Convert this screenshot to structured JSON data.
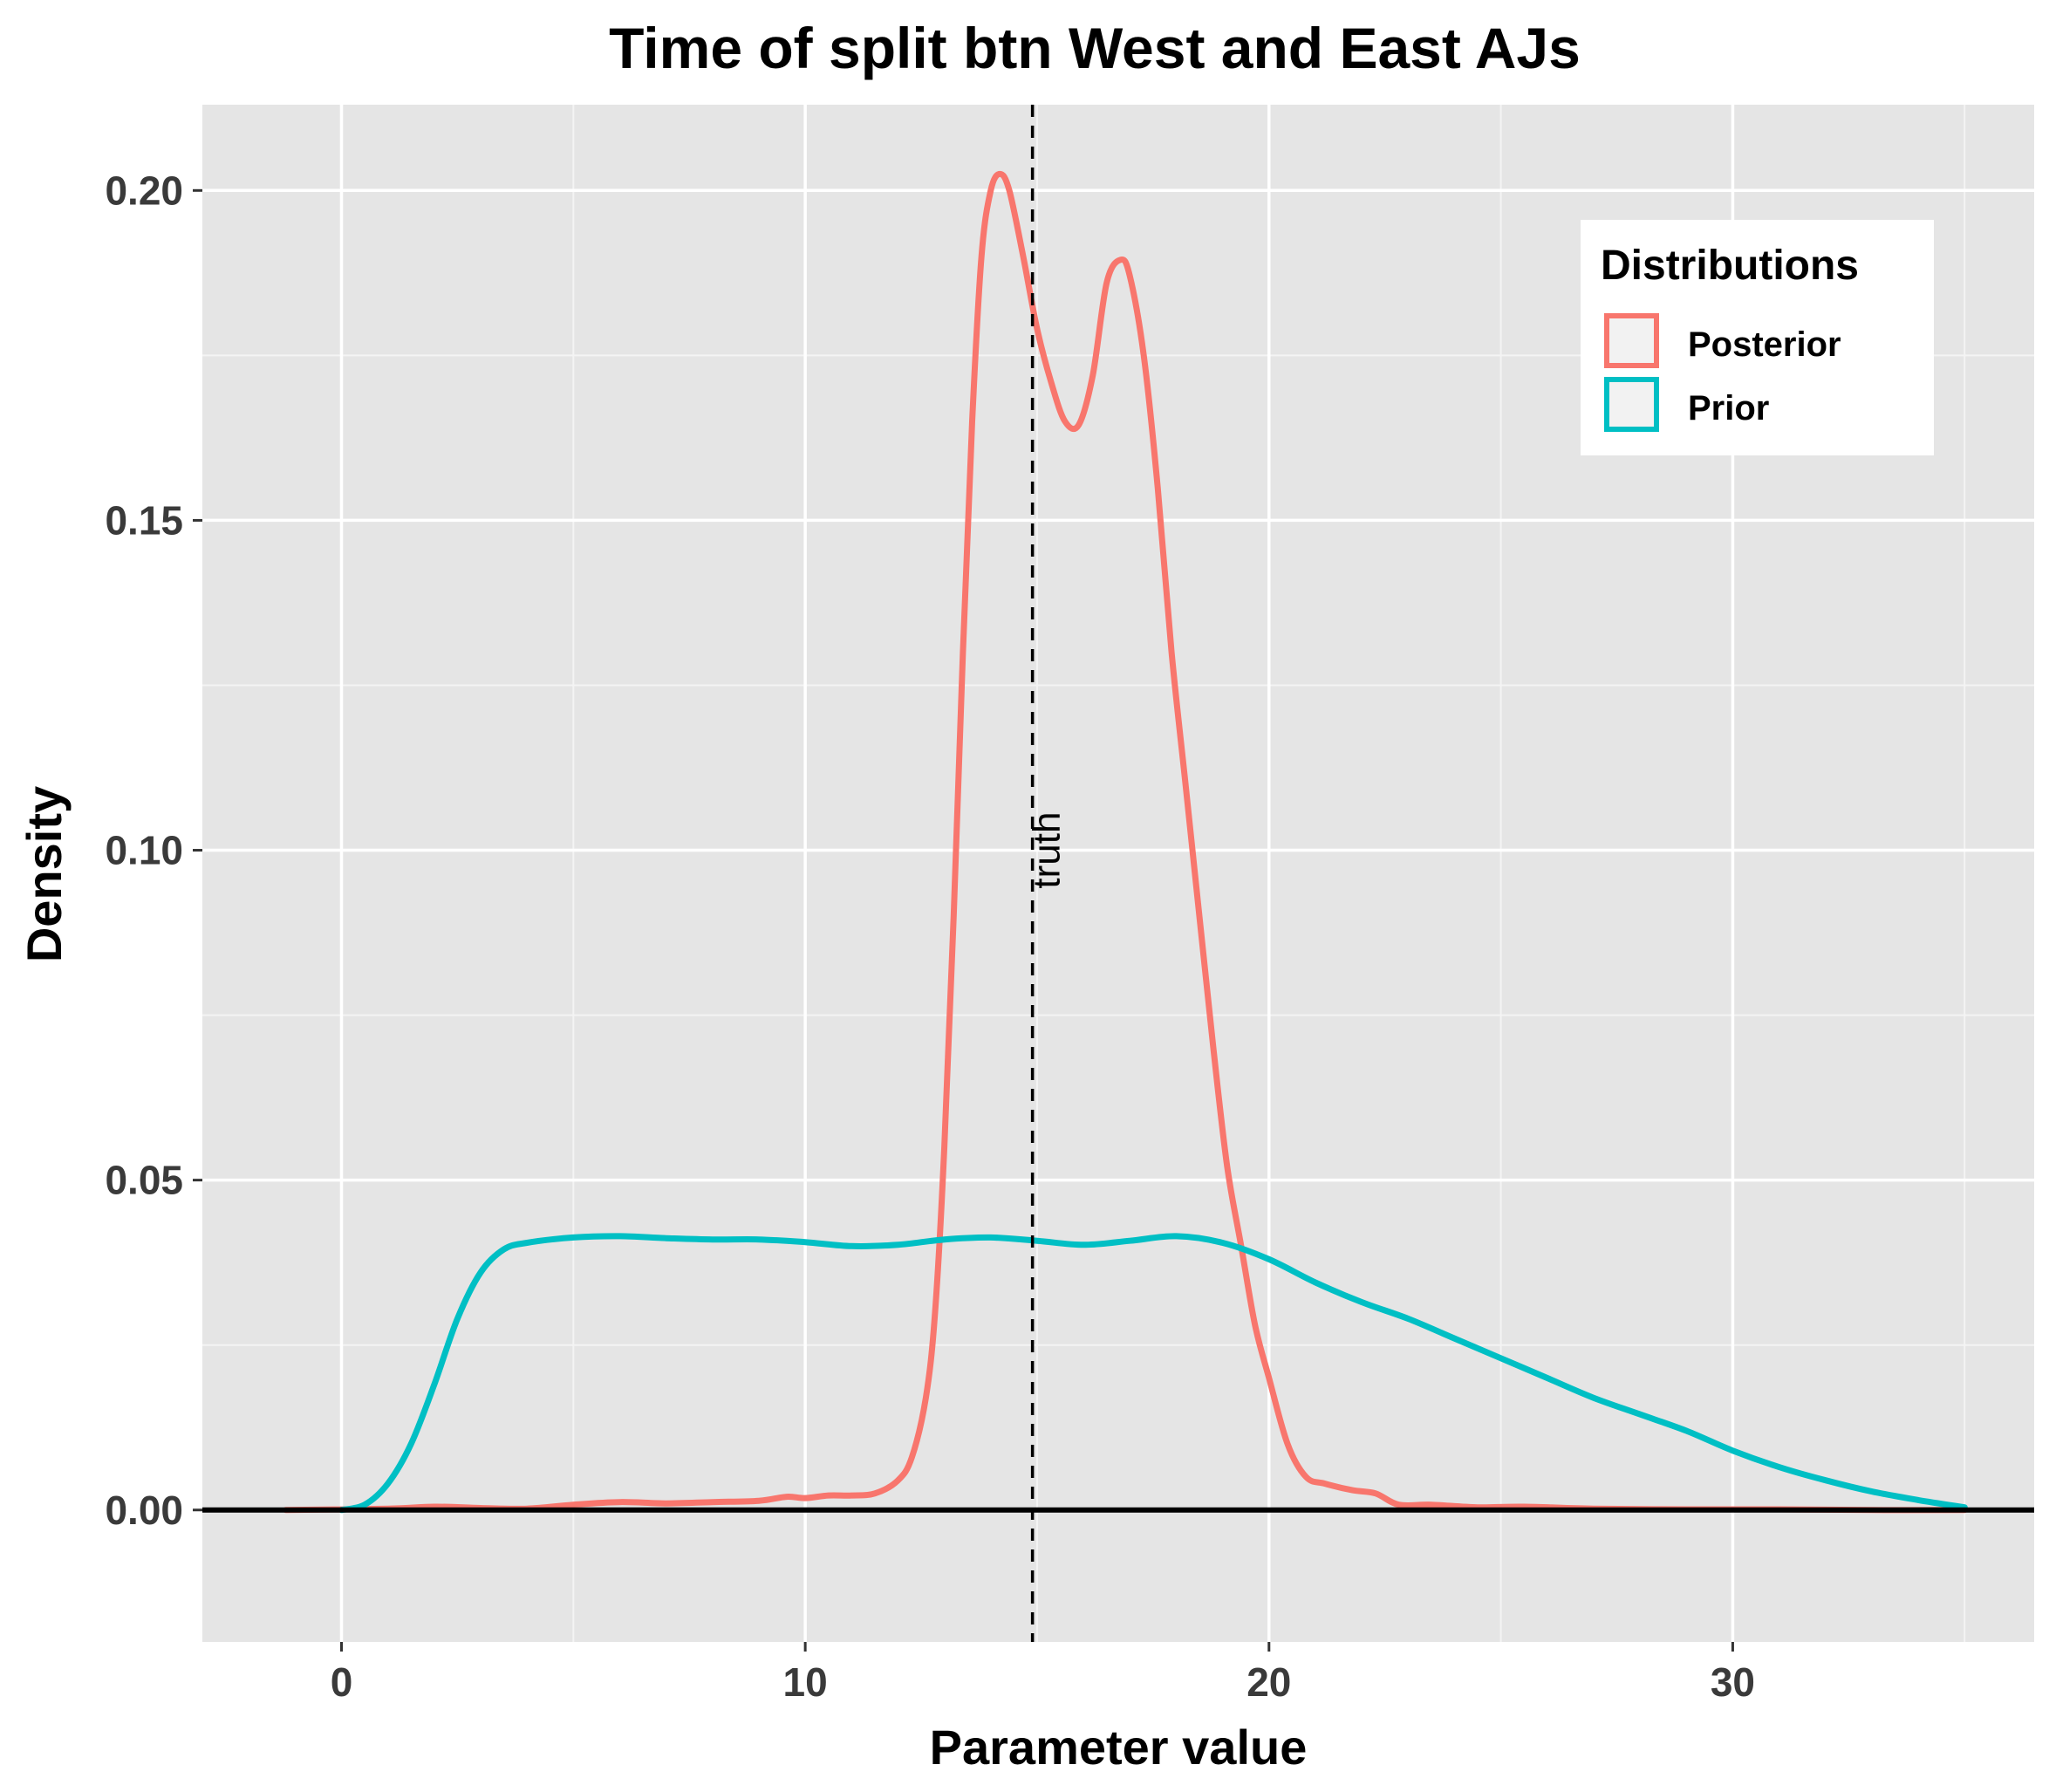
{
  "chart_data": {
    "type": "line",
    "title": "Time of split btn West and East AJs",
    "xlabel": "Parameter value",
    "ylabel": "Density",
    "xlim": [
      -3,
      36.5
    ],
    "ylim": [
      -0.02,
      0.213
    ],
    "x_ticks": [
      0,
      10,
      20,
      30
    ],
    "y_ticks": [
      0.0,
      0.05,
      0.1,
      0.15,
      0.2
    ],
    "x_tick_labels": [
      "0",
      "10",
      "20",
      "30"
    ],
    "y_tick_labels": [
      "0.00",
      "0.05",
      "0.10",
      "0.15",
      "0.20"
    ],
    "grid": true,
    "legend": {
      "title": "Distributions",
      "position": "top-right"
    },
    "reference_line": {
      "x": 14.9,
      "style": "dashed",
      "label": "truth"
    },
    "baseline_y": 0,
    "series": [
      {
        "name": "Posterior",
        "color": "#F8766D",
        "points": [
          [
            -1.2,
            0.0
          ],
          [
            1,
            0.0002
          ],
          [
            2,
            0.0005
          ],
          [
            3,
            0.0003
          ],
          [
            4,
            0.0002
          ],
          [
            5,
            0.0008
          ],
          [
            6,
            0.0012
          ],
          [
            7,
            0.001
          ],
          [
            8,
            0.0012
          ],
          [
            9,
            0.0014
          ],
          [
            9.6,
            0.002
          ],
          [
            10,
            0.0018
          ],
          [
            10.5,
            0.0022
          ],
          [
            11,
            0.0022
          ],
          [
            11.5,
            0.0025
          ],
          [
            12,
            0.0045
          ],
          [
            12.3,
            0.008
          ],
          [
            12.6,
            0.017
          ],
          [
            12.8,
            0.03
          ],
          [
            13.0,
            0.055
          ],
          [
            13.2,
            0.09
          ],
          [
            13.4,
            0.13
          ],
          [
            13.6,
            0.165
          ],
          [
            13.8,
            0.19
          ],
          [
            14.0,
            0.2
          ],
          [
            14.2,
            0.2025
          ],
          [
            14.4,
            0.2
          ],
          [
            14.7,
            0.19
          ],
          [
            15.0,
            0.179
          ],
          [
            15.3,
            0.171
          ],
          [
            15.6,
            0.165
          ],
          [
            15.9,
            0.1645
          ],
          [
            16.2,
            0.172
          ],
          [
            16.5,
            0.186
          ],
          [
            16.8,
            0.1895
          ],
          [
            17.0,
            0.187
          ],
          [
            17.3,
            0.175
          ],
          [
            17.6,
            0.155
          ],
          [
            17.9,
            0.13
          ],
          [
            18.2,
            0.11
          ],
          [
            18.5,
            0.09
          ],
          [
            18.8,
            0.07
          ],
          [
            19.1,
            0.052
          ],
          [
            19.4,
            0.04
          ],
          [
            19.7,
            0.028
          ],
          [
            20.0,
            0.02
          ],
          [
            20.4,
            0.01
          ],
          [
            20.8,
            0.005
          ],
          [
            21.2,
            0.004
          ],
          [
            21.8,
            0.003
          ],
          [
            22.3,
            0.0025
          ],
          [
            22.8,
            0.0008
          ],
          [
            23.5,
            0.0008
          ],
          [
            24.5,
            0.0004
          ],
          [
            25.5,
            0.0005
          ],
          [
            27,
            0.0002
          ],
          [
            29,
            0.0001
          ],
          [
            31,
            0.0001
          ],
          [
            33,
            0.0
          ],
          [
            35,
            0.0
          ]
        ]
      },
      {
        "name": "Prior",
        "color": "#00BFC4",
        "points": [
          [
            0,
            0.0
          ],
          [
            0.5,
            0.0008
          ],
          [
            1.0,
            0.004
          ],
          [
            1.5,
            0.01
          ],
          [
            2.0,
            0.019
          ],
          [
            2.5,
            0.029
          ],
          [
            3.0,
            0.036
          ],
          [
            3.5,
            0.0395
          ],
          [
            4.0,
            0.0405
          ],
          [
            5.0,
            0.0413
          ],
          [
            6.0,
            0.0415
          ],
          [
            7.0,
            0.0412
          ],
          [
            8.0,
            0.041
          ],
          [
            9.0,
            0.041
          ],
          [
            10.0,
            0.0406
          ],
          [
            11.0,
            0.04
          ],
          [
            12.0,
            0.0402
          ],
          [
            13.0,
            0.041
          ],
          [
            14.0,
            0.0413
          ],
          [
            15.0,
            0.0408
          ],
          [
            16.0,
            0.0402
          ],
          [
            17.0,
            0.0408
          ],
          [
            18.0,
            0.0415
          ],
          [
            19.0,
            0.0405
          ],
          [
            20.0,
            0.038
          ],
          [
            21.0,
            0.0345
          ],
          [
            22.0,
            0.0315
          ],
          [
            23.0,
            0.029
          ],
          [
            24.0,
            0.026
          ],
          [
            25.0,
            0.023
          ],
          [
            26.0,
            0.02
          ],
          [
            27.0,
            0.017
          ],
          [
            28.0,
            0.0145
          ],
          [
            29.0,
            0.012
          ],
          [
            30.0,
            0.009
          ],
          [
            31.0,
            0.0065
          ],
          [
            32.0,
            0.0045
          ],
          [
            33.0,
            0.0028
          ],
          [
            34.0,
            0.0015
          ],
          [
            35.0,
            0.0004
          ]
        ]
      }
    ]
  }
}
